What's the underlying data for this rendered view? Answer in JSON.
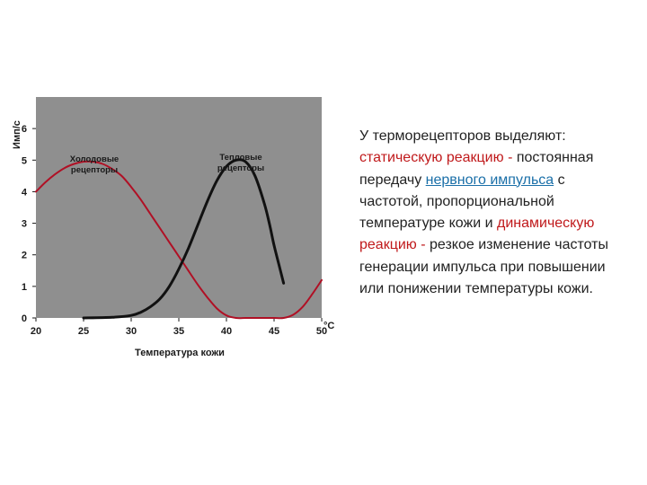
{
  "chart_data": {
    "type": "line",
    "xlabel": "Температура кожи",
    "ylabel": "Имп/с",
    "xlim": [
      20,
      50
    ],
    "ylim": [
      0,
      7
    ],
    "x_ticks": [
      "20",
      "25",
      "30",
      "35",
      "40",
      "45",
      "50"
    ],
    "x_unit": "°C",
    "y_ticks": [
      "0",
      "1",
      "2",
      "3",
      "4",
      "5",
      "6"
    ],
    "grid": false,
    "background": "#8f8f8f",
    "series": [
      {
        "name": "Холодовые рецепторы",
        "color": "#b01025",
        "x": [
          20,
          21,
          22,
          23,
          24,
          25,
          26,
          27,
          28,
          29,
          30,
          31,
          32,
          33,
          34,
          35,
          36,
          37,
          38,
          39,
          40,
          41,
          42,
          43,
          44,
          45,
          46,
          47,
          48,
          49,
          50
        ],
        "y": [
          4.0,
          4.3,
          4.55,
          4.75,
          4.88,
          4.95,
          4.95,
          4.88,
          4.72,
          4.5,
          4.15,
          3.75,
          3.3,
          2.85,
          2.4,
          1.95,
          1.5,
          1.05,
          0.65,
          0.3,
          0.08,
          0.0,
          0.0,
          0.0,
          0.0,
          0.0,
          0.0,
          0.1,
          0.35,
          0.75,
          1.2
        ]
      },
      {
        "name": "Тепловые рецепторы",
        "color": "#111111",
        "x": [
          25,
          28,
          30,
          31,
          32,
          33,
          34,
          35,
          36,
          37,
          38,
          39,
          40,
          41,
          42,
          43,
          44,
          44.5,
          45,
          45.5,
          46
        ],
        "y": [
          0.0,
          0.02,
          0.08,
          0.18,
          0.35,
          0.6,
          1.0,
          1.55,
          2.2,
          2.95,
          3.7,
          4.35,
          4.8,
          5.0,
          4.95,
          4.5,
          3.6,
          3.0,
          2.3,
          1.7,
          1.1
        ]
      }
    ]
  },
  "text": {
    "p1": "У терморецепторов выделяют: ",
    "static_reaction": "статическую реакцию - ",
    "p2": " постоянная передачу ",
    "link": "нервного импульса",
    "p3": " с частотой, пропорциональной температуре кожи и ",
    "dynamic_reaction": "динамическую реакцию -",
    "p4": " резкое изменение частоты генерации импульса при повышении или понижении температуры кожи."
  },
  "colors": {
    "red_text": "#c0191b",
    "link": "#1a6fa8"
  }
}
